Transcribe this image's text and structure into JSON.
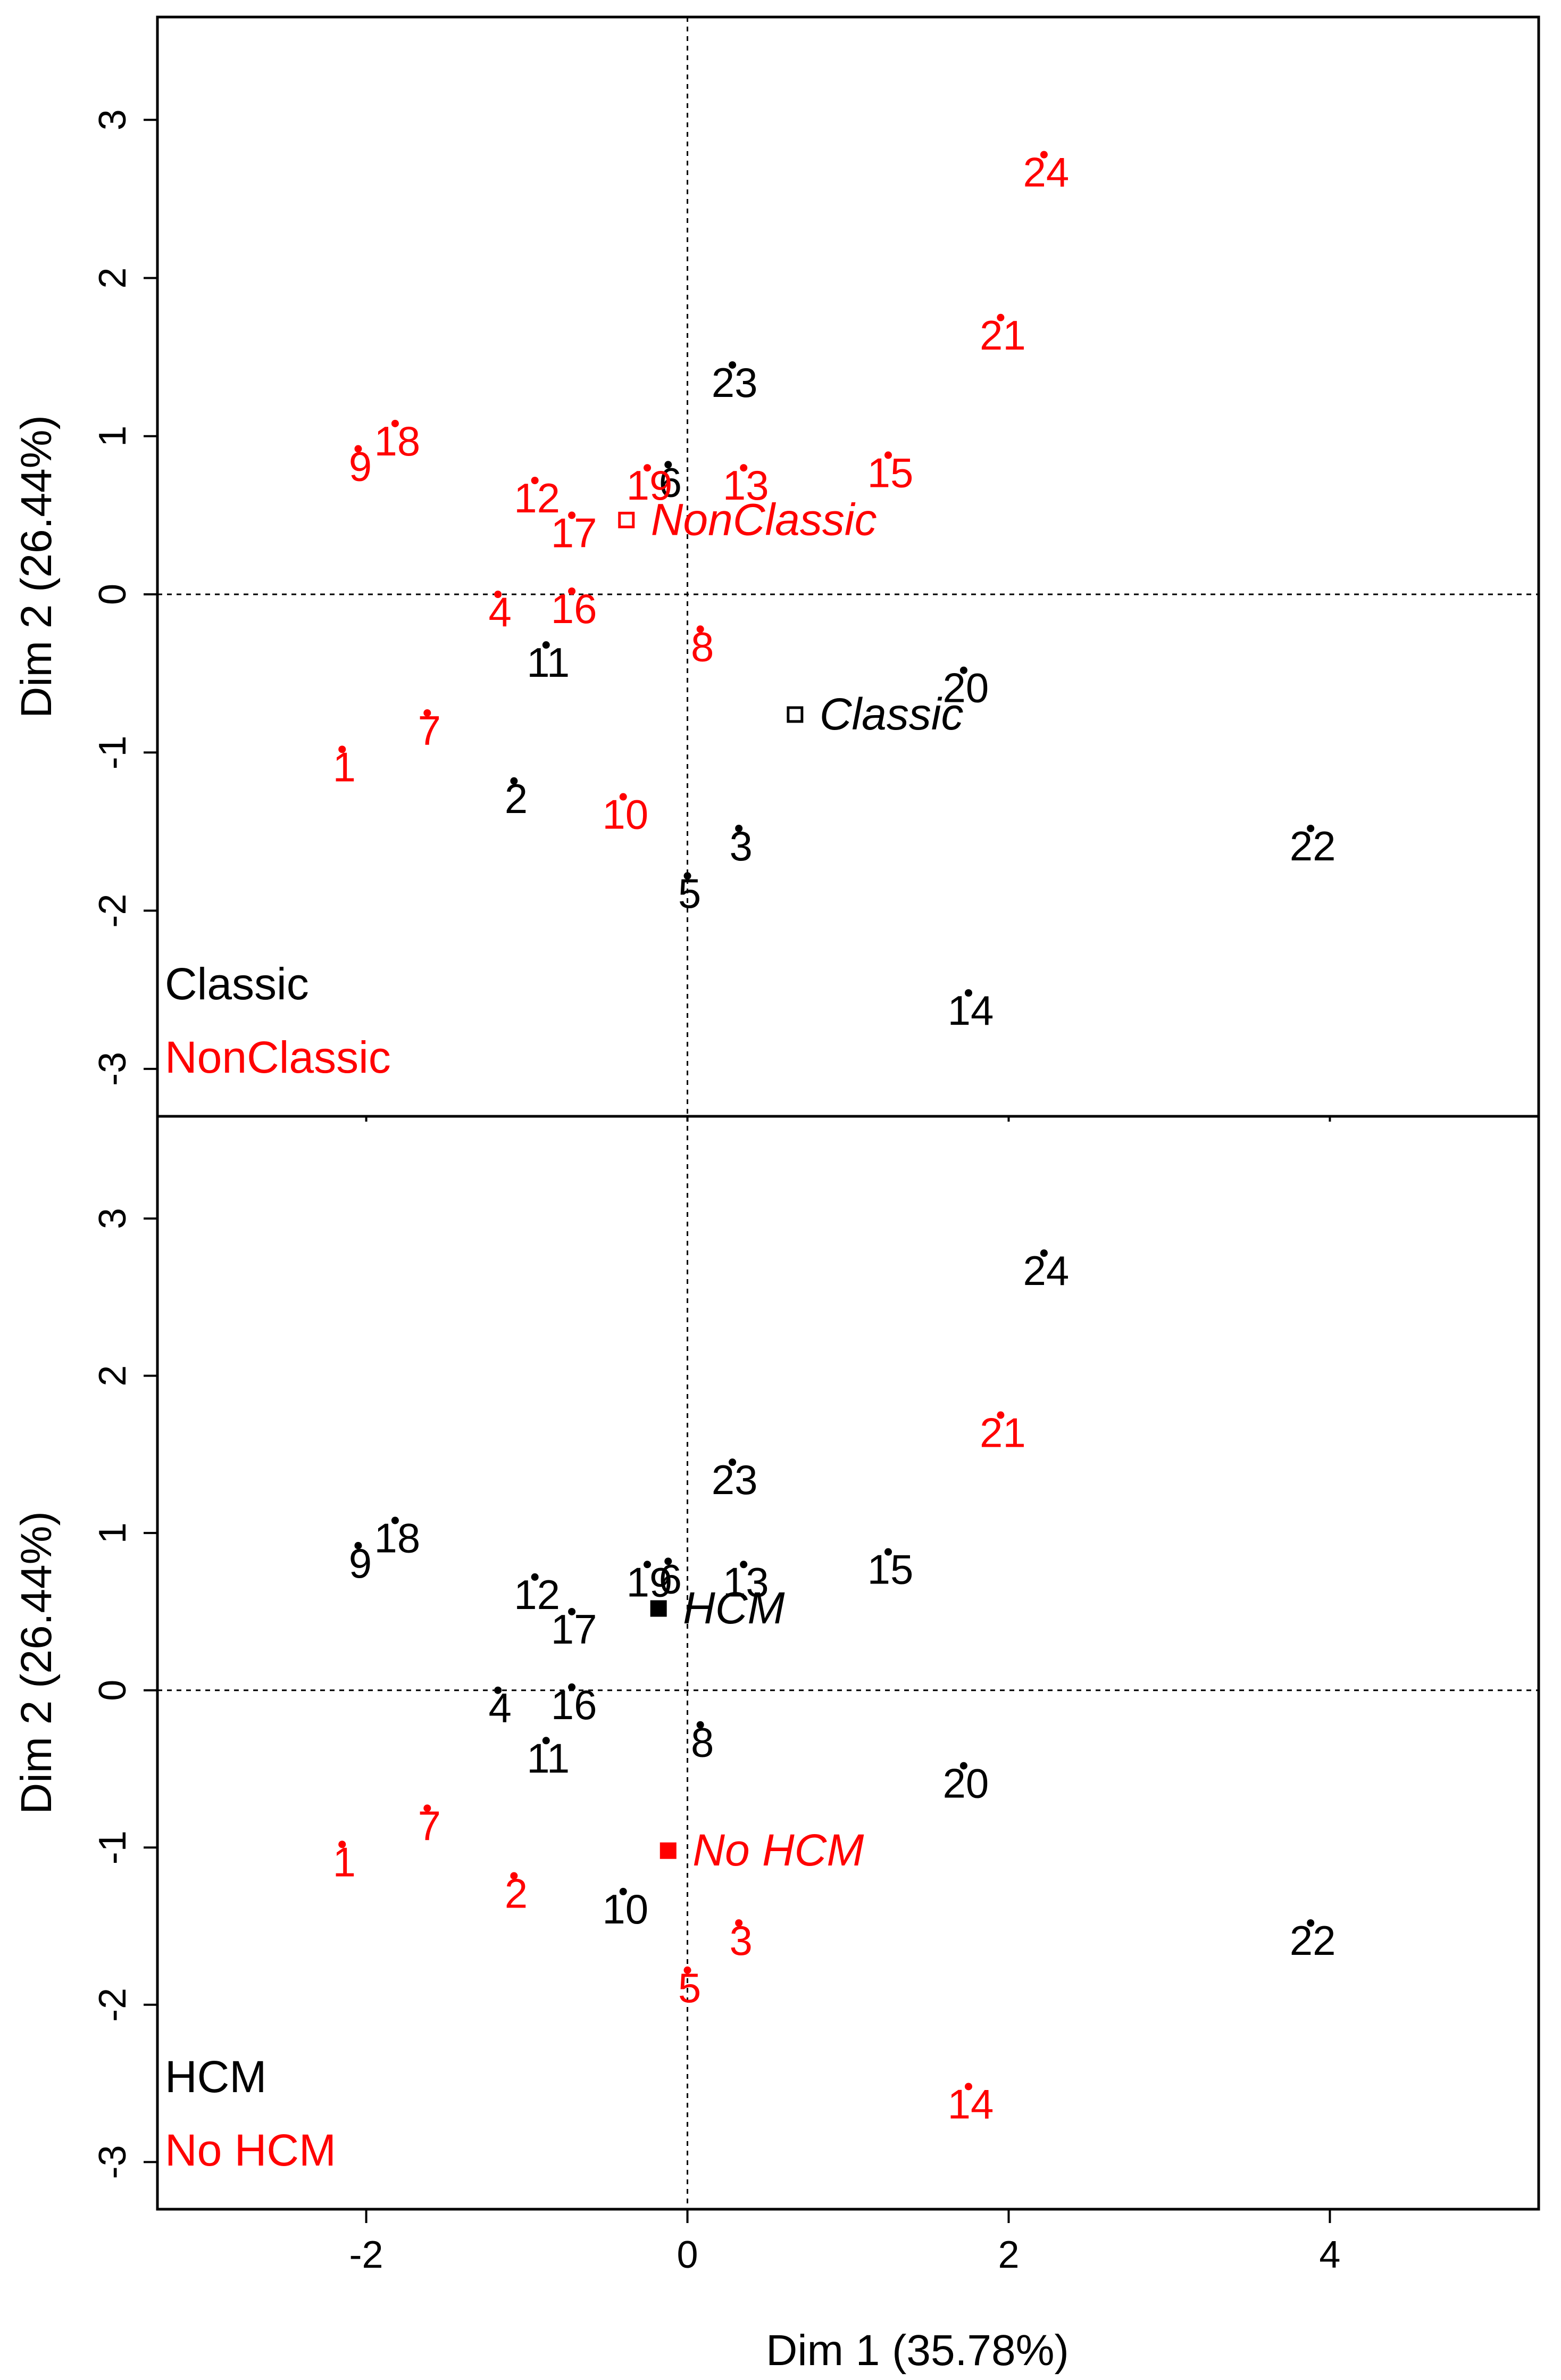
{
  "chart_data": [
    {
      "type": "scatter",
      "xlabel": "Dim 1 (35.78%)",
      "ylabel": "Dim 2 (26.44%)",
      "xlim": [
        -3.3,
        5.3
      ],
      "ylim": [
        -3.3,
        3.65
      ],
      "xticks": [
        "-2",
        "0",
        "2",
        "4"
      ],
      "yticks": [
        "3",
        "2",
        "1",
        "0",
        "-1",
        "-2",
        "-3"
      ],
      "grid": false,
      "reference_lines": {
        "x": 0,
        "y": 0
      },
      "legend_placement": "bottom-left",
      "legend": [
        {
          "label": "Classic",
          "color": "#000000"
        },
        {
          "label": "NonClassic",
          "color": "#ff0000"
        }
      ],
      "points": [
        {
          "label": "1",
          "x": -2.15,
          "y": -0.98,
          "group": "NonClassic"
        },
        {
          "label": "2",
          "x": -1.08,
          "y": -1.18,
          "group": "Classic"
        },
        {
          "label": "3",
          "x": 0.32,
          "y": -1.48,
          "group": "Classic"
        },
        {
          "label": "4",
          "x": -1.18,
          "y": 0.0,
          "group": "NonClassic"
        },
        {
          "label": "5",
          "x": 0.0,
          "y": -1.78,
          "group": "Classic"
        },
        {
          "label": "6",
          "x": -0.12,
          "y": 0.82,
          "group": "Classic"
        },
        {
          "label": "7",
          "x": -1.62,
          "y": -0.75,
          "group": "NonClassic"
        },
        {
          "label": "8",
          "x": 0.08,
          "y": -0.22,
          "group": "NonClassic"
        },
        {
          "label": "9",
          "x": -2.05,
          "y": 0.92,
          "group": "NonClassic"
        },
        {
          "label": "10",
          "x": -0.4,
          "y": -1.28,
          "group": "NonClassic"
        },
        {
          "label": "11",
          "x": -0.88,
          "y": -0.32,
          "group": "Classic"
        },
        {
          "label": "12",
          "x": -0.95,
          "y": 0.72,
          "group": "NonClassic"
        },
        {
          "label": "13",
          "x": 0.35,
          "y": 0.8,
          "group": "NonClassic"
        },
        {
          "label": "14",
          "x": 1.75,
          "y": -2.52,
          "group": "Classic"
        },
        {
          "label": "15",
          "x": 1.25,
          "y": 0.88,
          "group": "NonClassic"
        },
        {
          "label": "16",
          "x": -0.72,
          "y": 0.02,
          "group": "NonClassic"
        },
        {
          "label": "17",
          "x": -0.72,
          "y": 0.5,
          "group": "NonClassic"
        },
        {
          "label": "18",
          "x": -1.82,
          "y": 1.08,
          "group": "NonClassic"
        },
        {
          "label": "19",
          "x": -0.25,
          "y": 0.8,
          "group": "NonClassic"
        },
        {
          "label": "20",
          "x": 1.72,
          "y": -0.48,
          "group": "Classic"
        },
        {
          "label": "21",
          "x": 1.95,
          "y": 1.75,
          "group": "NonClassic"
        },
        {
          "label": "22",
          "x": 3.88,
          "y": -1.48,
          "group": "Classic"
        },
        {
          "label": "23",
          "x": 0.28,
          "y": 1.45,
          "group": "Classic"
        },
        {
          "label": "24",
          "x": 2.22,
          "y": 2.78,
          "group": "NonClassic"
        }
      ],
      "centroids": [
        {
          "label": "NonClassic",
          "x": -0.38,
          "y": 0.47,
          "group": "NonClassic",
          "marker": "open-square"
        },
        {
          "label": "Classic",
          "x": 0.67,
          "y": -0.76,
          "group": "Classic",
          "marker": "open-square"
        }
      ]
    },
    {
      "type": "scatter",
      "xlabel": "Dim 1 (35.78%)",
      "ylabel": "Dim 2 (26.44%)",
      "xlim": [
        -3.3,
        5.3
      ],
      "ylim": [
        -3.3,
        3.65
      ],
      "xticks": [
        "-2",
        "0",
        "2",
        "4"
      ],
      "yticks": [
        "3",
        "2",
        "1",
        "0",
        "-1",
        "-2",
        "-3"
      ],
      "grid": false,
      "reference_lines": {
        "x": 0,
        "y": 0
      },
      "legend_placement": "bottom-left",
      "legend": [
        {
          "label": "HCM",
          "color": "#000000"
        },
        {
          "label": "No HCM",
          "color": "#ff0000"
        }
      ],
      "points": [
        {
          "label": "1",
          "x": -2.15,
          "y": -0.98,
          "group": "No HCM"
        },
        {
          "label": "2",
          "x": -1.08,
          "y": -1.18,
          "group": "No HCM"
        },
        {
          "label": "3",
          "x": 0.32,
          "y": -1.48,
          "group": "No HCM"
        },
        {
          "label": "4",
          "x": -1.18,
          "y": 0.0,
          "group": "HCM"
        },
        {
          "label": "5",
          "x": 0.0,
          "y": -1.78,
          "group": "No HCM"
        },
        {
          "label": "6",
          "x": -0.12,
          "y": 0.82,
          "group": "HCM"
        },
        {
          "label": "7",
          "x": -1.62,
          "y": -0.75,
          "group": "No HCM"
        },
        {
          "label": "8",
          "x": 0.08,
          "y": -0.22,
          "group": "HCM"
        },
        {
          "label": "9",
          "x": -2.05,
          "y": 0.92,
          "group": "HCM"
        },
        {
          "label": "10",
          "x": -0.4,
          "y": -1.28,
          "group": "HCM"
        },
        {
          "label": "11",
          "x": -0.88,
          "y": -0.32,
          "group": "HCM"
        },
        {
          "label": "12",
          "x": -0.95,
          "y": 0.72,
          "group": "HCM"
        },
        {
          "label": "13",
          "x": 0.35,
          "y": 0.8,
          "group": "HCM"
        },
        {
          "label": "14",
          "x": 1.75,
          "y": -2.52,
          "group": "No HCM"
        },
        {
          "label": "15",
          "x": 1.25,
          "y": 0.88,
          "group": "HCM"
        },
        {
          "label": "16",
          "x": -0.72,
          "y": 0.02,
          "group": "HCM"
        },
        {
          "label": "17",
          "x": -0.72,
          "y": 0.5,
          "group": "HCM"
        },
        {
          "label": "18",
          "x": -1.82,
          "y": 1.08,
          "group": "HCM"
        },
        {
          "label": "19",
          "x": -0.25,
          "y": 0.8,
          "group": "HCM"
        },
        {
          "label": "20",
          "x": 1.72,
          "y": -0.48,
          "group": "HCM"
        },
        {
          "label": "21",
          "x": 1.95,
          "y": 1.75,
          "group": "No HCM"
        },
        {
          "label": "22",
          "x": 3.88,
          "y": -1.48,
          "group": "HCM"
        },
        {
          "label": "23",
          "x": 0.28,
          "y": 1.45,
          "group": "HCM"
        },
        {
          "label": "24",
          "x": 2.22,
          "y": 2.78,
          "group": "HCM"
        }
      ],
      "centroids": [
        {
          "label": "HCM",
          "x": -0.18,
          "y": 0.52,
          "group": "HCM",
          "marker": "filled-square"
        },
        {
          "label": "No HCM",
          "x": -0.12,
          "y": -1.02,
          "group": "No HCM",
          "marker": "filled-square"
        }
      ]
    }
  ],
  "colors": {
    "group_a": "#000000",
    "group_b": "#ff0000",
    "background": "#ffffff",
    "reference_line": "#000000"
  }
}
